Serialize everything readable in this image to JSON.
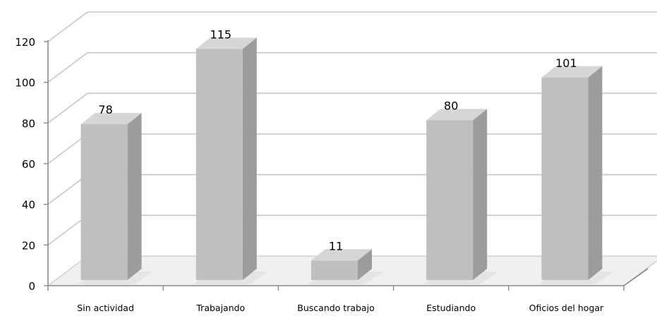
{
  "chart_data": {
    "type": "bar",
    "categories": [
      "Sin actividad",
      "Trabajando",
      "Buscando trabajo",
      "Estudiando",
      "Oficios del hogar"
    ],
    "values": [
      78,
      115,
      11,
      80,
      101
    ],
    "data_labels": [
      "78",
      "115",
      "11",
      "80",
      "101"
    ],
    "ylim": [
      0,
      120
    ],
    "y_ticks": [
      0,
      20,
      40,
      60,
      80,
      100,
      120
    ],
    "title": "",
    "xlabel": "",
    "ylabel": "",
    "grid": true,
    "three_d": true,
    "colors": {
      "bar_front": "#bfbfbf",
      "bar_side": "#9c9c9c",
      "bar_top": "#d6d6d6",
      "gridline": "#c6c6c6",
      "floor": "#f0f0f0",
      "shadow": "#e2e2e2"
    }
  }
}
